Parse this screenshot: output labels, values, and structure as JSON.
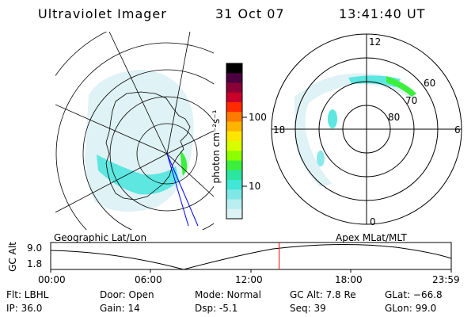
{
  "header": {
    "instrument": "Ultraviolet Imager",
    "date": "31 Oct 07",
    "time": "13:41:40 UT"
  },
  "colorbar": {
    "unit_label": "photon cm⁻²s⁻¹",
    "ticks": [
      "100",
      "10"
    ],
    "colors": [
      "#000000",
      "#4b0040",
      "#8a0036",
      "#c8002a",
      "#ff2a00",
      "#ff7a00",
      "#ffb400",
      "#ffe600",
      "#d8ff00",
      "#8cff00",
      "#3cef3c",
      "#2ae6a0",
      "#40e6d6",
      "#7fe8e6",
      "#b8eef0",
      "#dcf2f4"
    ]
  },
  "polar_plot": {
    "mlt_labels": [
      "12",
      "18",
      "6",
      "0"
    ],
    "lat_labels": [
      "60",
      "70",
      "80"
    ]
  },
  "timeline": {
    "left_axis_label": "GC Alt",
    "y_ticks": [
      "9.0",
      "1.8"
    ],
    "left_title": "Geographic Lat/Lon",
    "right_title": "Apex MLat/MLT",
    "x_ticks": [
      "00:00",
      "06:00",
      "12:00",
      "18:00",
      "23:59"
    ],
    "marker_color": "#ff0000",
    "marker_hour": 13.69
  },
  "info": {
    "filter": "Flt: LBHL",
    "ip": "IP: 36.0",
    "door": "Door: Open",
    "gain": "Gain: 14",
    "mode": "Mode: Normal",
    "dsp": "Dsp:   -5.1",
    "gc_alt": "GC Alt: 7.8 Re",
    "seq": "Seq: 39",
    "glat": "GLat: −66.8",
    "glon": "GLon:  99.0"
  }
}
